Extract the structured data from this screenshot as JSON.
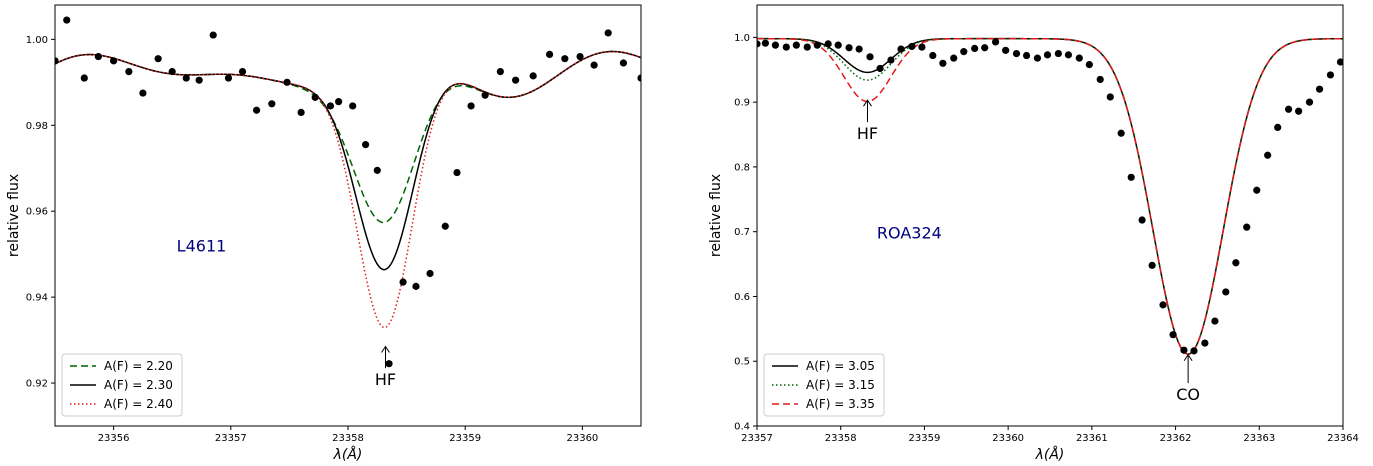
{
  "chart_data": [
    {
      "type": "line",
      "title": "",
      "xlabel": "λ(Å)",
      "ylabel": "relative flux",
      "xlim": [
        23355.5,
        23360.5
      ],
      "ylim": [
        0.91,
        1.008
      ],
      "xticks": [
        23356,
        23357,
        23358,
        23359,
        23360
      ],
      "yticks": [
        0.92,
        0.94,
        0.96,
        0.98,
        1.0
      ],
      "ytick_labels": [
        "0.92",
        "0.94",
        "0.96",
        "0.98",
        "1.00"
      ],
      "grid": false,
      "legend_position": "lower-left",
      "star_label": "L4611",
      "star_color": "#00007f",
      "annotations": [
        {
          "text": "HF",
          "x": 23358.32,
          "y_arrow_tip": 0.9285,
          "y_text": 0.9195
        }
      ],
      "continuum": {
        "mean": 0.9925,
        "waves": [
          {
            "a": 0.0035,
            "period": 2.2,
            "phase": 23356.1
          },
          {
            "a": 0.0025,
            "period": 1.5,
            "phase": 23355.6
          }
        ]
      },
      "series": [
        {
          "name": "A(F) = 2.20",
          "style": "dashed",
          "color": "#006400",
          "line_center": 23358.32,
          "line_sigma": 0.27,
          "line_depth": 0.0395
        },
        {
          "name": "A(F) = 2.30",
          "style": "solid",
          "color": "#000000",
          "line_center": 23358.32,
          "line_sigma": 0.25,
          "line_depth": 0.0505
        },
        {
          "name": "A(F) = 2.40",
          "style": "dotted",
          "color": "#e31a1c",
          "line_center": 23358.32,
          "line_sigma": 0.24,
          "line_depth": 0.064
        }
      ],
      "observed": {
        "x": [
          23355.5,
          23355.6,
          23355.75,
          23355.87,
          23356.0,
          23356.13,
          23356.25,
          23356.38,
          23356.5,
          23356.62,
          23356.73,
          23356.85,
          23356.98,
          23357.1,
          23357.22,
          23357.35,
          23357.48,
          23357.6,
          23357.72,
          23357.85,
          23357.92,
          23358.04,
          23358.15,
          23358.25,
          23358.35,
          23358.47,
          23358.58,
          23358.7,
          23358.83,
          23358.93,
          23359.05,
          23359.17,
          23359.3,
          23359.43,
          23359.58,
          23359.72,
          23359.85,
          23359.98,
          23360.1,
          23360.22,
          23360.35,
          23360.5
        ],
        "y": [
          0.995,
          1.0045,
          0.991,
          0.996,
          0.995,
          0.9925,
          0.9875,
          0.9955,
          0.9925,
          0.991,
          0.9905,
          1.001,
          0.991,
          0.9925,
          0.9835,
          0.985,
          0.99,
          0.983,
          0.9865,
          0.9845,
          0.9855,
          0.9845,
          0.9755,
          0.9695,
          0.9245,
          0.9435,
          0.9425,
          0.9455,
          0.9565,
          0.969,
          0.9845,
          0.987,
          0.9925,
          0.9905,
          0.9915,
          0.9965,
          0.9955,
          0.996,
          0.994,
          1.0015,
          0.9945,
          0.991
        ]
      }
    },
    {
      "type": "line",
      "title": "",
      "xlabel": "λ(Å)",
      "ylabel": "relative flux",
      "xlim": [
        23357,
        23364
      ],
      "ylim": [
        0.4,
        1.05
      ],
      "xticks": [
        23357,
        23358,
        23359,
        23360,
        23361,
        23362,
        23363,
        23364
      ],
      "yticks": [
        0.4,
        0.5,
        0.6,
        0.7,
        0.8,
        0.9,
        1.0
      ],
      "ytick_labels": [
        "0.4",
        "0.5",
        "0.6",
        "0.7",
        "0.8",
        "0.9",
        "1.0"
      ],
      "grid": false,
      "legend_position": "lower-left",
      "star_label": "ROA324",
      "star_color": "#00007f",
      "annotations": [
        {
          "text": "HF",
          "x": 23358.32,
          "y_arrow_tip": 0.903,
          "y_text": 0.843
        },
        {
          "text": "CO",
          "x": 23362.15,
          "y_arrow_tip": 0.51,
          "y_text": 0.44
        }
      ],
      "continuum": {
        "mean": 0.998,
        "waves": []
      },
      "co_line": {
        "center": 23362.15,
        "sigma": 0.42,
        "depth": 0.487
      },
      "series": [
        {
          "name": "A(F) = 3.05",
          "style": "solid",
          "color": "#000000",
          "line_center": 23358.32,
          "line_sigma": 0.28,
          "line_depth": 0.052
        },
        {
          "name": "A(F) = 3.15",
          "style": "dotted",
          "color": "#006400",
          "line_center": 23358.32,
          "line_sigma": 0.28,
          "line_depth": 0.064
        },
        {
          "name": "A(F) = 3.35",
          "style": "dashed",
          "color": "#e31a1c",
          "line_center": 23358.32,
          "line_sigma": 0.28,
          "line_depth": 0.097
        }
      ],
      "observed": {
        "x": [
          23357.0,
          23357.1,
          23357.22,
          23357.35,
          23357.47,
          23357.6,
          23357.72,
          23357.85,
          23357.97,
          23358.1,
          23358.22,
          23358.35,
          23358.47,
          23358.6,
          23358.72,
          23358.85,
          23358.97,
          23359.1,
          23359.22,
          23359.35,
          23359.47,
          23359.6,
          23359.72,
          23359.85,
          23359.97,
          23360.1,
          23360.22,
          23360.35,
          23360.47,
          23360.6,
          23360.72,
          23360.85,
          23360.97,
          23361.1,
          23361.22,
          23361.35,
          23361.47,
          23361.6,
          23361.72,
          23361.85,
          23361.97,
          23362.1,
          23362.22,
          23362.35,
          23362.47,
          23362.6,
          23362.72,
          23362.85,
          23362.97,
          23363.1,
          23363.22,
          23363.35,
          23363.47,
          23363.6,
          23363.72,
          23363.85,
          23363.97
        ],
        "y": [
          0.99,
          0.991,
          0.988,
          0.985,
          0.988,
          0.985,
          0.988,
          0.99,
          0.988,
          0.984,
          0.982,
          0.97,
          0.952,
          0.965,
          0.982,
          0.986,
          0.985,
          0.972,
          0.96,
          0.968,
          0.978,
          0.983,
          0.984,
          0.993,
          0.98,
          0.975,
          0.972,
          0.968,
          0.973,
          0.975,
          0.973,
          0.968,
          0.958,
          0.935,
          0.908,
          0.852,
          0.784,
          0.718,
          0.648,
          0.587,
          0.541,
          0.517,
          0.516,
          0.528,
          0.562,
          0.607,
          0.652,
          0.707,
          0.764,
          0.818,
          0.861,
          0.889,
          0.886,
          0.9,
          0.92,
          0.942,
          0.962
        ]
      }
    }
  ]
}
